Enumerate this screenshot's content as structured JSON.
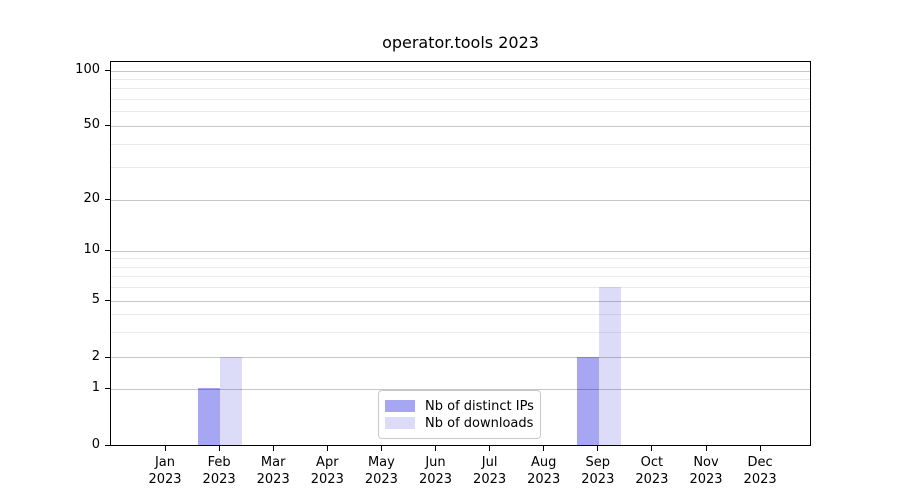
{
  "chart_data": {
    "type": "bar",
    "title": "operator.tools 2023",
    "xlabel": "",
    "ylabel": "",
    "x_categories": [
      {
        "line1": "Jan",
        "line2": "2023"
      },
      {
        "line1": "Feb",
        "line2": "2023"
      },
      {
        "line1": "Mar",
        "line2": "2023"
      },
      {
        "line1": "Apr",
        "line2": "2023"
      },
      {
        "line1": "May",
        "line2": "2023"
      },
      {
        "line1": "Jun",
        "line2": "2023"
      },
      {
        "line1": "Jul",
        "line2": "2023"
      },
      {
        "line1": "Aug",
        "line2": "2023"
      },
      {
        "line1": "Sep",
        "line2": "2023"
      },
      {
        "line1": "Oct",
        "line2": "2023"
      },
      {
        "line1": "Nov",
        "line2": "2023"
      },
      {
        "line1": "Dec",
        "line2": "2023"
      }
    ],
    "series": [
      {
        "name": "Nb of distinct IPs",
        "color": "#a6a6f2",
        "values": [
          0,
          1,
          0,
          0,
          0,
          0,
          0,
          0,
          2,
          0,
          0,
          0
        ]
      },
      {
        "name": "Nb of downloads",
        "color": "#dcdcf8",
        "values": [
          0,
          2,
          0,
          0,
          0,
          0,
          0,
          0,
          6,
          0,
          0,
          0
        ]
      }
    ],
    "y_axis": {
      "scale": "symlog",
      "ticks": [
        0,
        1,
        2,
        5,
        10,
        20,
        50,
        100
      ],
      "minor_ticks": [
        3,
        4,
        6,
        7,
        8,
        9,
        30,
        40,
        60,
        70,
        80,
        90
      ],
      "ylim": [
        0,
        100
      ]
    },
    "legend": {
      "position": "bottom-center"
    },
    "grid": true
  }
}
